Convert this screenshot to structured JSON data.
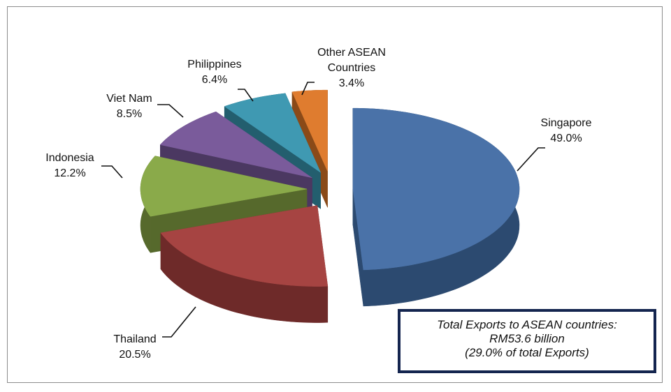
{
  "chart_data": {
    "type": "pie",
    "style": "3d-exploded",
    "title": "",
    "slices": [
      {
        "label": "Singapore",
        "value": 49.0,
        "value_label": "49.0%",
        "color": "#4a72a8",
        "side": "#2c4a70"
      },
      {
        "label": "Thailand",
        "value": 20.5,
        "value_label": "20.5%",
        "color": "#a64442",
        "side": "#6e2a29"
      },
      {
        "label": "Indonesia",
        "value": 12.2,
        "value_label": "12.2%",
        "color": "#8aaa4a",
        "side": "#56692c"
      },
      {
        "label": "Viet Nam",
        "value": 8.5,
        "value_label": "8.5%",
        "color": "#7a5b9b",
        "side": "#4b3861"
      },
      {
        "label": "Philippines",
        "value": 6.4,
        "value_label": "6.4%",
        "color": "#3f99b2",
        "side": "#235e6e"
      },
      {
        "label": "Other ASEAN Countries",
        "label_lines": [
          "Other ASEAN",
          "Countries"
        ],
        "value": 3.4,
        "value_label": "3.4%",
        "color": "#df7c2f",
        "side": "#8a4a18"
      }
    ],
    "note": {
      "line1": "Total Exports to ASEAN countries:",
      "line2": "RM53.6 billion",
      "line3": "(29.0% of total Exports)"
    }
  }
}
